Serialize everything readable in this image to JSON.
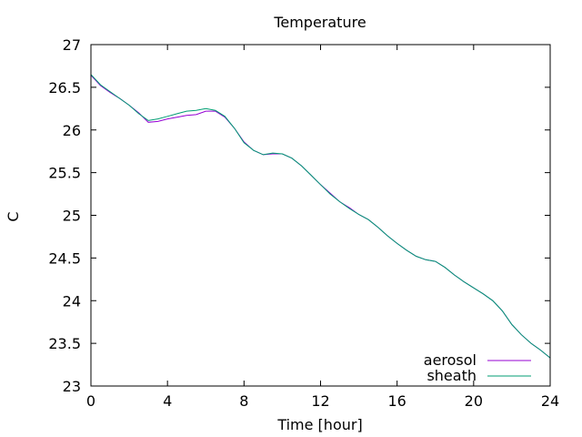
{
  "chart_data": {
    "type": "line",
    "title": "Temperature",
    "xlabel": "Time [hour]",
    "ylabel": "C",
    "xlim": [
      0,
      24
    ],
    "ylim": [
      23,
      27
    ],
    "x_ticks": [
      0,
      4,
      8,
      12,
      16,
      20,
      24
    ],
    "y_ticks": [
      23,
      23.5,
      24,
      24.5,
      25,
      25.5,
      26,
      26.5,
      27
    ],
    "grid": false,
    "legend_position": "bottom-right",
    "series": [
      {
        "name": "aerosol",
        "color": "#9400d3",
        "x": [
          0,
          0.5,
          1,
          1.5,
          2,
          2.5,
          3,
          3.5,
          4,
          4.5,
          5,
          5.5,
          6,
          6.5,
          7,
          7.5,
          8,
          8.5,
          9,
          9.5,
          10,
          10.5,
          11,
          11.5,
          12,
          12.5,
          13,
          13.5,
          14,
          14.5,
          15,
          15.5,
          16,
          16.5,
          17,
          17.5,
          18,
          18.5,
          19,
          19.5,
          20,
          20.5,
          21,
          21.5,
          22,
          22.5,
          23,
          23.5,
          24
        ],
        "values": [
          26.64,
          26.52,
          26.44,
          26.37,
          26.29,
          26.2,
          26.09,
          26.1,
          26.13,
          26.15,
          26.17,
          26.18,
          26.22,
          26.22,
          26.15,
          26.02,
          25.86,
          25.76,
          25.71,
          25.72,
          25.72,
          25.67,
          25.58,
          25.47,
          25.36,
          25.26,
          25.16,
          25.09,
          25.01,
          24.95,
          24.86,
          24.76,
          24.67,
          24.59,
          24.52,
          24.48,
          24.46,
          24.39,
          24.3,
          24.22,
          24.15,
          24.08,
          24.0,
          23.88,
          23.72,
          23.6,
          23.5,
          23.42,
          23.33
        ]
      },
      {
        "name": "sheath",
        "color": "#009e73",
        "x": [
          0,
          0.5,
          1,
          1.5,
          2,
          2.5,
          3,
          3.5,
          4,
          4.5,
          5,
          5.5,
          6,
          6.5,
          7,
          7.5,
          8,
          8.5,
          9,
          9.5,
          10,
          10.5,
          11,
          11.5,
          12,
          12.5,
          13,
          13.5,
          14,
          14.5,
          15,
          15.5,
          16,
          16.5,
          17,
          17.5,
          18,
          18.5,
          19,
          19.5,
          20,
          20.5,
          21,
          21.5,
          22,
          22.5,
          23,
          23.5,
          24
        ],
        "values": [
          26.65,
          26.53,
          26.45,
          26.37,
          26.29,
          26.19,
          26.11,
          26.13,
          26.16,
          26.19,
          26.22,
          26.23,
          26.25,
          26.23,
          26.16,
          26.02,
          25.85,
          25.76,
          25.71,
          25.73,
          25.72,
          25.67,
          25.58,
          25.47,
          25.36,
          25.25,
          25.16,
          25.08,
          25.01,
          24.95,
          24.86,
          24.76,
          24.67,
          24.59,
          24.52,
          24.48,
          24.46,
          24.39,
          24.3,
          24.22,
          24.15,
          24.08,
          24.0,
          23.88,
          23.72,
          23.6,
          23.5,
          23.42,
          23.33
        ]
      }
    ]
  }
}
